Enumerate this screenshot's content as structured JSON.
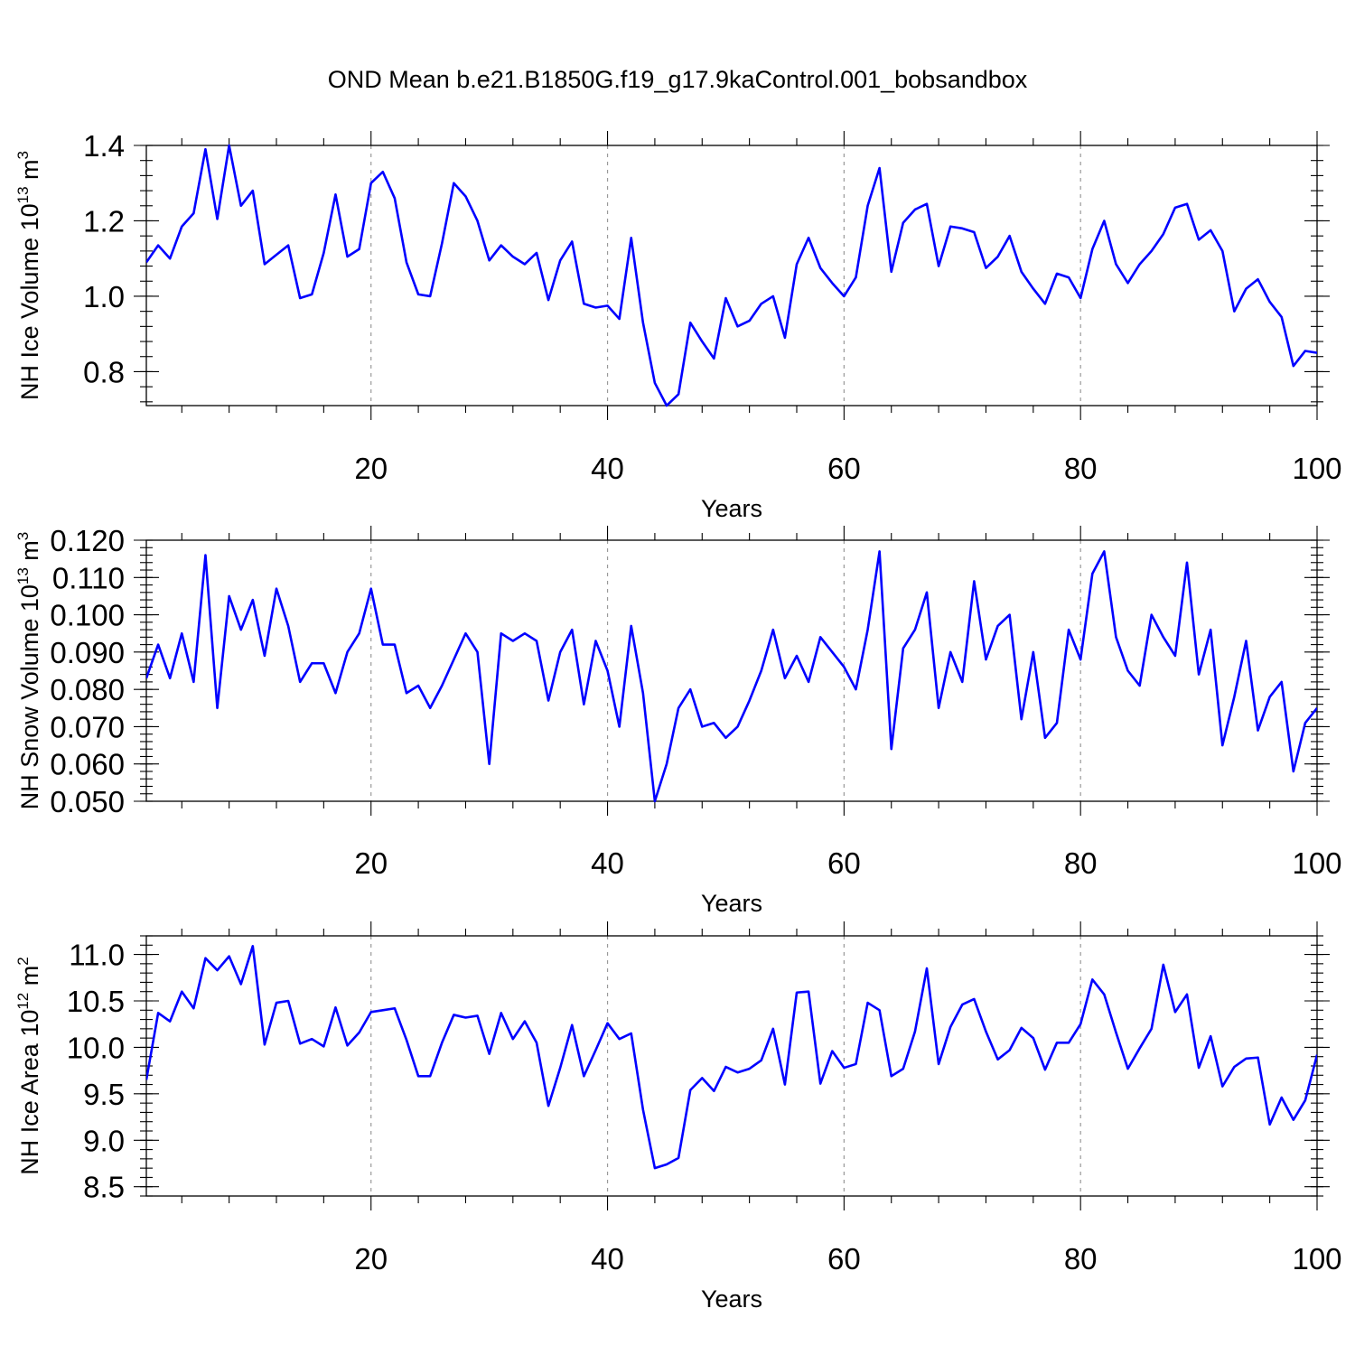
{
  "chart_data": {
    "title": "OND Mean b.e21.B1850G.f19_g17.9kaControl.001_bobsandbox",
    "type": "line",
    "panels": [
      {
        "name": "ice-volume",
        "type": "line",
        "ylabel_main": "NH Ice Volume 10",
        "ylabel_exp": "13",
        "ylabel_unit": " m",
        "ylabel_unit_exp": "3",
        "xlabel": "Years",
        "xlim": [
          1,
          100
        ],
        "ylim": [
          0.71,
          1.4
        ],
        "xticks": [
          "20",
          "40",
          "60",
          "80",
          "100"
        ],
        "yticks": [
          {
            "v": 0.8,
            "label": "0.8"
          },
          {
            "v": 1.0,
            "label": "1.0"
          },
          {
            "v": 1.2,
            "label": "1.2"
          },
          {
            "v": 1.4,
            "label": "1.4"
          }
        ],
        "yminor_step": 0.04,
        "color": "#0000ff",
        "series": [
          {
            "name": "NH Ice Volume",
            "values": [
              1.09,
              1.135,
              1.1,
              1.185,
              1.22,
              1.39,
              1.205,
              1.4,
              1.24,
              1.28,
              1.085,
              1.11,
              1.135,
              0.995,
              1.005,
              1.115,
              1.27,
              1.105,
              1.125,
              1.3,
              1.33,
              1.26,
              1.09,
              1.005,
              1.0,
              1.14,
              1.3,
              1.265,
              1.2,
              1.095,
              1.135,
              1.105,
              1.085,
              1.115,
              0.99,
              1.095,
              1.145,
              0.98,
              0.97,
              0.975,
              0.94,
              1.155,
              0.93,
              0.77,
              0.71,
              0.74,
              0.93,
              0.88,
              0.835,
              0.995,
              0.92,
              0.935,
              0.98,
              1.0,
              0.89,
              1.085,
              1.155,
              1.075,
              1.035,
              1.0,
              1.05,
              1.24,
              1.34,
              1.065,
              1.195,
              1.23,
              1.245,
              1.08,
              1.185,
              1.18,
              1.17,
              1.075,
              1.105,
              1.16,
              1.065,
              1.02,
              0.98,
              1.06,
              1.05,
              0.995,
              1.125,
              1.2,
              1.085,
              1.035,
              1.085,
              1.12,
              1.165,
              1.235,
              1.245,
              1.15,
              1.175,
              1.12,
              0.96,
              1.02,
              1.045,
              0.985,
              0.945,
              0.815,
              0.855,
              0.85
            ]
          }
        ]
      },
      {
        "name": "snow-volume",
        "type": "line",
        "ylabel_main": "NH Snow Volume 10",
        "ylabel_exp": "13",
        "ylabel_unit": " m",
        "ylabel_unit_exp": "3",
        "xlabel": "Years",
        "xlim": [
          1,
          100
        ],
        "ylim": [
          0.05,
          0.12
        ],
        "xticks": [
          "20",
          "40",
          "60",
          "80",
          "100"
        ],
        "yticks": [
          {
            "v": 0.05,
            "label": "0.050"
          },
          {
            "v": 0.06,
            "label": "0.060"
          },
          {
            "v": 0.07,
            "label": "0.070"
          },
          {
            "v": 0.08,
            "label": "0.080"
          },
          {
            "v": 0.09,
            "label": "0.090"
          },
          {
            "v": 0.1,
            "label": "0.100"
          },
          {
            "v": 0.11,
            "label": "0.110"
          },
          {
            "v": 0.12,
            "label": "0.120"
          }
        ],
        "yminor_step": 0.002,
        "color": "#0000ff",
        "series": [
          {
            "name": "NH Snow Volume",
            "values": [
              0.083,
              0.092,
              0.083,
              0.095,
              0.082,
              0.116,
              0.075,
              0.105,
              0.096,
              0.104,
              0.089,
              0.107,
              0.097,
              0.082,
              0.087,
              0.087,
              0.079,
              0.09,
              0.095,
              0.107,
              0.092,
              0.092,
              0.079,
              0.081,
              0.075,
              0.081,
              0.088,
              0.095,
              0.09,
              0.06,
              0.095,
              0.093,
              0.095,
              0.093,
              0.077,
              0.09,
              0.096,
              0.076,
              0.093,
              0.085,
              0.07,
              0.097,
              0.079,
              0.05,
              0.06,
              0.075,
              0.08,
              0.07,
              0.071,
              0.067,
              0.07,
              0.077,
              0.085,
              0.096,
              0.083,
              0.089,
              0.082,
              0.094,
              0.09,
              0.086,
              0.08,
              0.096,
              0.117,
              0.064,
              0.091,
              0.096,
              0.106,
              0.075,
              0.09,
              0.082,
              0.109,
              0.088,
              0.097,
              0.1,
              0.072,
              0.09,
              0.067,
              0.071,
              0.096,
              0.088,
              0.111,
              0.117,
              0.094,
              0.085,
              0.081,
              0.1,
              0.094,
              0.089,
              0.114,
              0.084,
              0.096,
              0.065,
              0.078,
              0.093,
              0.069,
              0.078,
              0.082,
              0.058,
              0.071,
              0.075
            ]
          }
        ]
      },
      {
        "name": "ice-area",
        "type": "line",
        "ylabel_main": "NH Ice Area 10",
        "ylabel_exp": "12",
        "ylabel_unit": " m",
        "ylabel_unit_exp": "2",
        "xlabel": "Years",
        "xlim": [
          1,
          100
        ],
        "ylim": [
          8.4,
          11.2
        ],
        "xticks": [
          "20",
          "40",
          "60",
          "80",
          "100"
        ],
        "yticks": [
          {
            "v": 8.5,
            "label": "8.5"
          },
          {
            "v": 9.0,
            "label": "9.0"
          },
          {
            "v": 9.5,
            "label": "9.5"
          },
          {
            "v": 10.0,
            "label": "10.0"
          },
          {
            "v": 10.5,
            "label": "10.5"
          },
          {
            "v": 11.0,
            "label": "11.0"
          }
        ],
        "yminor_step": 0.1,
        "color": "#0000ff",
        "series": [
          {
            "name": "NH Ice Area",
            "values": [
              9.65,
              10.37,
              10.28,
              10.6,
              10.42,
              10.96,
              10.83,
              10.98,
              10.68,
              11.09,
              10.03,
              10.48,
              10.5,
              10.04,
              10.09,
              10.01,
              10.43,
              10.02,
              10.16,
              10.38,
              10.4,
              10.42,
              10.08,
              9.69,
              9.69,
              10.05,
              10.35,
              10.32,
              10.34,
              9.93,
              10.37,
              10.09,
              10.28,
              10.05,
              9.37,
              9.78,
              10.24,
              9.69,
              9.97,
              10.26,
              10.09,
              10.15,
              9.33,
              8.7,
              8.74,
              8.81,
              9.54,
              9.67,
              9.53,
              9.79,
              9.73,
              9.77,
              9.86,
              10.2,
              9.6,
              10.59,
              10.6,
              9.61,
              9.96,
              9.78,
              9.82,
              10.48,
              10.4,
              9.69,
              9.77,
              10.17,
              10.85,
              9.82,
              10.22,
              10.46,
              10.52,
              10.17,
              9.87,
              9.97,
              10.21,
              10.1,
              9.76,
              10.05,
              10.05,
              10.25,
              10.73,
              10.57,
              10.16,
              9.77,
              9.99,
              10.2,
              10.89,
              10.38,
              10.57,
              9.78,
              10.12,
              9.58,
              9.79,
              9.88,
              9.89,
              9.17,
              9.46,
              9.22,
              9.43,
              9.92
            ]
          }
        ]
      }
    ]
  }
}
